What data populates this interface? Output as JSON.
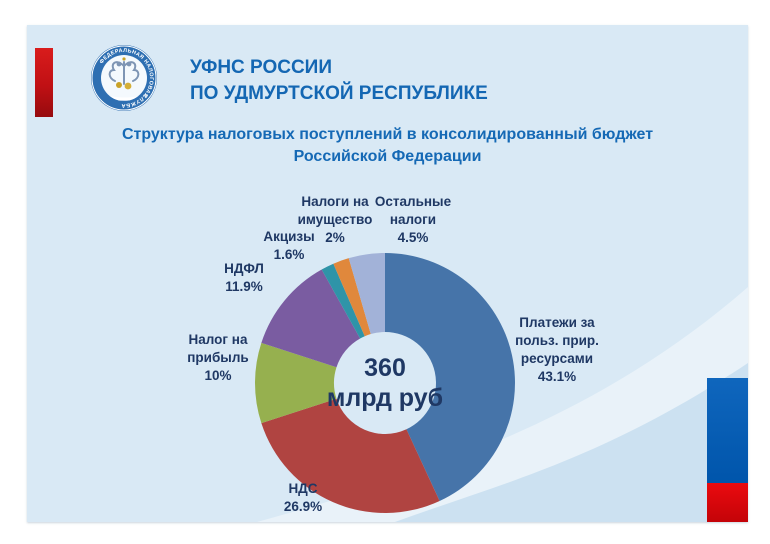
{
  "header": {
    "title_line1": "УФНС РОССИИ",
    "title_line2": "ПО УДМУРТСКОЙ РЕСПУБЛИКЕ",
    "title_color": "#1467b3",
    "logo": {
      "name": "federal-tax-service-emblem",
      "ring_text_top": "ФЕДЕРАЛЬНАЯ НАЛОГОВАЯ",
      "ring_text_bottom": "СЛУЖБА",
      "ring_color": "#2e6fb2"
    }
  },
  "subtitle": {
    "line1": "Структура налоговых поступлений в консолидированный бюджет",
    "line2": "Российской Федерации"
  },
  "decor": {
    "slide_background": "#d9e9f5",
    "top_left_bar_color": "#c01014",
    "bottom_right_bar_blue": "#0055ab",
    "bottom_right_bar_red": "#e30613"
  },
  "chart_data": {
    "type": "pie",
    "subtype": "donut",
    "title": "Структура налоговых поступлений в консолидированный бюджет Российской Федерации",
    "total_label": "360 млрд руб",
    "center_text": {
      "line1": "360",
      "line2": "млрд руб"
    },
    "start_angle_deg": 0,
    "direction": "clockwise",
    "label_text_color": "#1f3864",
    "segments": [
      {
        "name": "Платежи за польз. прир. ресурсами",
        "value": 43.1,
        "pct_label": "43.1%",
        "color": "#4674a9",
        "label_lines": [
          "Платежи за",
          "польз. прир.",
          "ресурсами"
        ]
      },
      {
        "name": "НДС",
        "value": 26.9,
        "pct_label": "26.9%",
        "color": "#b04441",
        "label_lines": [
          "НДС"
        ]
      },
      {
        "name": "Налог на прибыль",
        "value": 10,
        "pct_label": "10%",
        "color": "#96b04f",
        "label_lines": [
          "Налог на",
          "прибыль"
        ]
      },
      {
        "name": "НДФЛ",
        "value": 11.9,
        "pct_label": "11.9%",
        "color": "#7a5ca1",
        "label_lines": [
          "НДФЛ"
        ]
      },
      {
        "name": "Акцизы",
        "value": 1.6,
        "pct_label": "1.6%",
        "color": "#2f94a8",
        "label_lines": [
          "Акцизы"
        ]
      },
      {
        "name": "Налоги на имущество",
        "value": 2,
        "pct_label": "2%",
        "color": "#e0883c",
        "label_lines": [
          "Налоги на",
          "имущество"
        ]
      },
      {
        "name": "Остальные налоги",
        "value": 4.5,
        "pct_label": "4.5%",
        "color": "#a2b2d8",
        "label_lines": [
          "Остальные",
          "налоги"
        ]
      }
    ]
  }
}
